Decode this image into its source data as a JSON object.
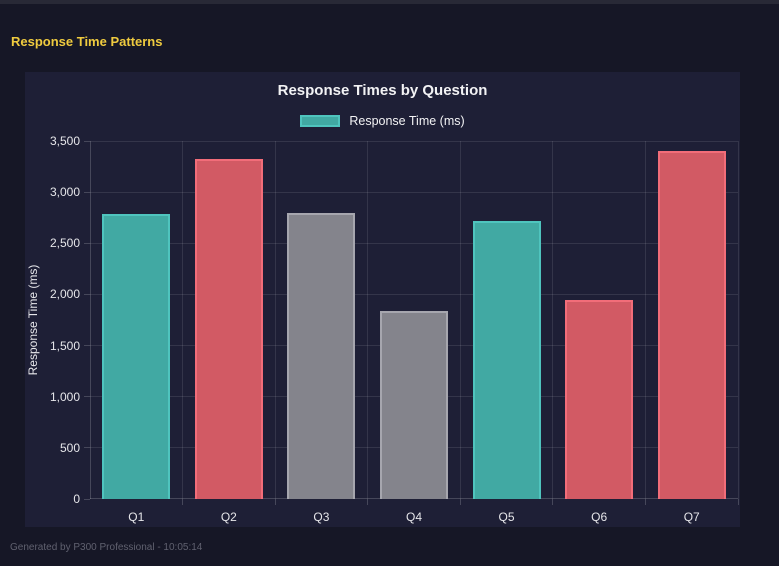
{
  "page": {
    "header_title": "Response Time Patterns",
    "footer": "Generated by P300 Professional - 10:05:14"
  },
  "colors": {
    "page_bg": "#161726",
    "top_strip": "#282936",
    "panel_bg": "#1E1F36",
    "header_yellow": "#EFCB3F",
    "grid": "rgba(255,255,255,0.10)",
    "axis_text": "#E6E6EA",
    "teal_fill": "#41A9A3",
    "teal_border": "#4FC4BE",
    "red_fill": "#D25A64",
    "red_border": "#F26D79",
    "gray_fill": "#84848C",
    "gray_border": "#A6A6AE"
  },
  "chart_data": {
    "type": "bar",
    "title": "Response Times by Question",
    "legend": [
      {
        "label": "Response Time (ms)",
        "color": "teal"
      }
    ],
    "legend_position": "top",
    "categories": [
      "Q1",
      "Q2",
      "Q3",
      "Q4",
      "Q5",
      "Q6",
      "Q7"
    ],
    "values": [
      2790,
      3320,
      2800,
      1840,
      2720,
      1950,
      3400
    ],
    "bar_colors": [
      "teal",
      "red",
      "gray",
      "gray",
      "teal",
      "red",
      "red"
    ],
    "xlabel": "",
    "ylabel": "Response Time (ms)",
    "ylim": [
      0,
      3500
    ],
    "ytick_step": 500,
    "ytick_labels": [
      "0",
      "500",
      "1,000",
      "1,500",
      "2,000",
      "2,500",
      "3,000",
      "3,500"
    ],
    "grid": true
  }
}
